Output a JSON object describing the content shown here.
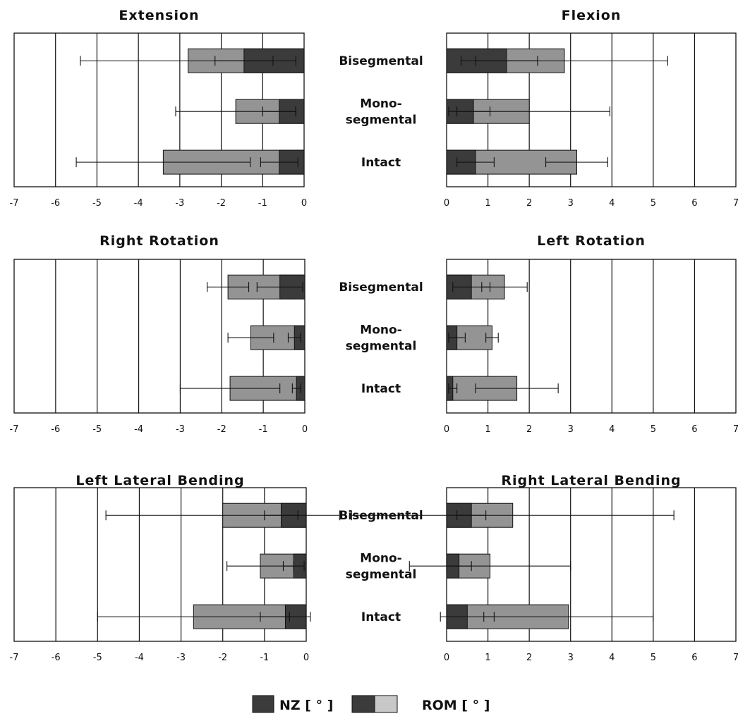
{
  "categories": [
    "Bisegmental",
    "Mono-segmental",
    "Intact"
  ],
  "category_lines": [
    [
      "Bisegmental"
    ],
    [
      "Mono-",
      "segmental"
    ],
    [
      "Intact"
    ]
  ],
  "legend": {
    "nz_label": "NZ [ ° ]",
    "rom_label": "ROM [ ° ]"
  },
  "colors": {
    "nz": "#3b3b3b",
    "rom": "#949494",
    "rom_light": "#c8c8c8",
    "edge": "#111111"
  },
  "chart_data": [
    {
      "type": "bar",
      "orientation": "horizontal",
      "stacked": "overlay",
      "title": "Extension",
      "xlim": [
        -7,
        0
      ],
      "xticks": [
        -7,
        -6,
        -5,
        -4,
        -3,
        -2,
        -1,
        0
      ],
      "grid": true,
      "series": [
        {
          "name": "NZ [ ° ]",
          "values": [
            -1.45,
            -0.6,
            -0.6
          ],
          "errors": [
            0.7,
            0.4,
            0.45
          ]
        },
        {
          "name": "ROM [ ° ]",
          "values": [
            -2.8,
            -1.65,
            -3.4
          ],
          "errors": [
            2.6,
            1.45,
            2.1
          ]
        }
      ]
    },
    {
      "type": "bar",
      "orientation": "horizontal",
      "stacked": "overlay",
      "title": "Flexion",
      "xlim": [
        0,
        7
      ],
      "xticks": [
        0,
        1,
        2,
        3,
        4,
        5,
        6,
        7
      ],
      "grid": true,
      "series": [
        {
          "name": "NZ [ ° ]",
          "values": [
            1.45,
            0.65,
            0.7
          ],
          "errors": [
            0.75,
            0.4,
            0.45
          ]
        },
        {
          "name": "ROM [ ° ]",
          "values": [
            2.85,
            2.0,
            3.15
          ],
          "errors": [
            2.5,
            1.95,
            0.75
          ]
        }
      ]
    },
    {
      "type": "bar",
      "orientation": "horizontal",
      "stacked": "overlay",
      "title": "Right Rotation",
      "xlim": [
        -7,
        0
      ],
      "xticks": [
        -7,
        -6,
        -5,
        -4,
        -3,
        -2,
        -1,
        0
      ],
      "grid": true,
      "series": [
        {
          "name": "NZ [ ° ]",
          "values": [
            -0.6,
            -0.25,
            -0.2
          ],
          "errors": [
            0.55,
            0.15,
            0.1
          ]
        },
        {
          "name": "ROM [ ° ]",
          "values": [
            -1.85,
            -1.3,
            -1.8
          ],
          "errors": [
            0.5,
            0.55,
            1.2
          ]
        }
      ]
    },
    {
      "type": "bar",
      "orientation": "horizontal",
      "stacked": "overlay",
      "title": "Left Rotation",
      "xlim": [
        0,
        7
      ],
      "xticks": [
        0,
        1,
        2,
        3,
        4,
        5,
        6,
        7
      ],
      "grid": true,
      "series": [
        {
          "name": "NZ [ ° ]",
          "values": [
            0.6,
            0.25,
            0.15
          ],
          "errors": [
            0.45,
            0.2,
            0.1
          ]
        },
        {
          "name": "ROM [ ° ]",
          "values": [
            1.4,
            1.1,
            1.7
          ],
          "errors": [
            0.55,
            0.15,
            1.0
          ]
        }
      ]
    },
    {
      "type": "bar",
      "orientation": "horizontal",
      "stacked": "overlay",
      "title": "Left Lateral Bending",
      "xlim": [
        -7,
        0
      ],
      "xticks": [
        -7,
        -6,
        -5,
        -4,
        -3,
        -2,
        -1,
        0
      ],
      "grid": true,
      "series": [
        {
          "name": "NZ [ ° ]",
          "values": [
            -0.6,
            -0.3,
            -0.5
          ],
          "errors": [
            0.4,
            0.25,
            0.6
          ]
        },
        {
          "name": "ROM [ ° ]",
          "values": [
            -2.0,
            -1.1,
            -2.7
          ],
          "errors": [
            2.8,
            0.8,
            2.3
          ]
        }
      ]
    },
    {
      "type": "bar",
      "orientation": "horizontal",
      "stacked": "overlay",
      "title": "Right Lateral Bending",
      "xlim": [
        0,
        7
      ],
      "xticks": [
        0,
        1,
        2,
        3,
        4,
        5,
        6,
        7
      ],
      "grid": true,
      "series": [
        {
          "name": "NZ [ ° ]",
          "values": [
            0.6,
            0.3,
            0.5
          ],
          "errors": [
            0.35,
            0.3,
            0.65
          ]
        },
        {
          "name": "ROM [ ° ]",
          "values": [
            1.6,
            1.05,
            2.95
          ],
          "errors": [
            3.9,
            1.95,
            2.05
          ]
        }
      ]
    }
  ]
}
